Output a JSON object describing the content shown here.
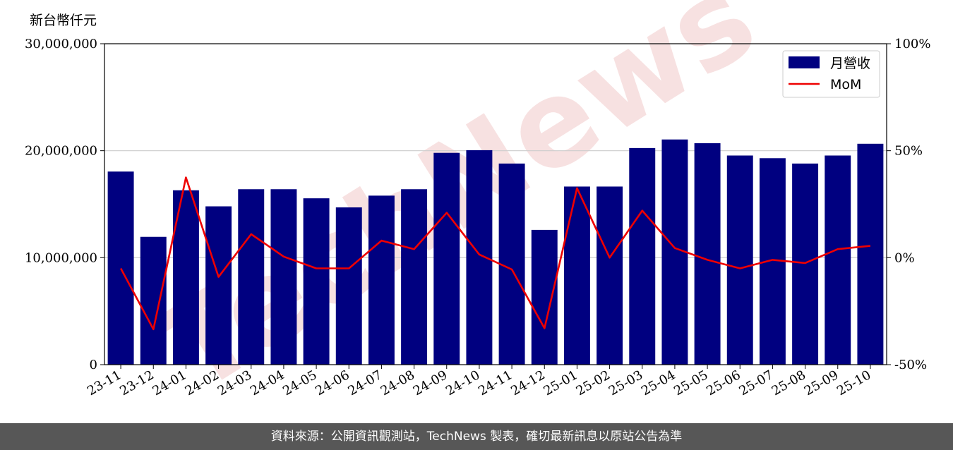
{
  "unit_label": "新台幣仟元",
  "footer": "資料來源：公開資訊觀測站，TechNews 製表，確切最新訊息以原站公告為準",
  "watermark": "TechNews",
  "colors": {
    "bar": "#000080",
    "line": "#ee0000",
    "grid": "#cccccc",
    "footer_bg": "#575757",
    "watermark": "#f0c8c8"
  },
  "chart_data": {
    "type": "bar",
    "categories": [
      "23-11",
      "23-12",
      "24-01",
      "24-02",
      "24-03",
      "24-04",
      "24-05",
      "24-06",
      "24-07",
      "24-08",
      "24-09",
      "24-10",
      "24-11",
      "24-12",
      "25-01",
      "25-02",
      "25-03",
      "25-04",
      "25-05",
      "25-06",
      "25-07",
      "25-08",
      "25-09",
      "25-10"
    ],
    "series": [
      {
        "name": "月營收",
        "type": "bar",
        "axis": "left",
        "values": [
          18050000,
          11950000,
          16300000,
          14800000,
          16400000,
          16400000,
          15550000,
          14700000,
          15800000,
          16400000,
          19800000,
          20050000,
          18800000,
          12600000,
          16650000,
          16650000,
          20250000,
          21050000,
          20700000,
          19550000,
          19300000,
          18800000,
          19550000,
          20650000
        ]
      },
      {
        "name": "MoM",
        "type": "line",
        "axis": "right",
        "values": [
          -5,
          -33.5,
          37.5,
          -9,
          11,
          0.5,
          -5,
          -5,
          8,
          4,
          21,
          1.5,
          -5.5,
          -33,
          32.5,
          0,
          22,
          4.5,
          -1,
          -5,
          -1,
          -2.5,
          4,
          5.5
        ]
      }
    ],
    "y_left": {
      "ylim": [
        0,
        30000000
      ],
      "ticks": [
        "0",
        "10,000,000",
        "20,000,000",
        "30,000,000"
      ]
    },
    "y_right": {
      "ylim": [
        -50,
        100
      ],
      "ticks": [
        "-50%",
        "0%",
        "50%",
        "100%"
      ]
    },
    "grid": "horizontal",
    "legend": "top-right"
  }
}
